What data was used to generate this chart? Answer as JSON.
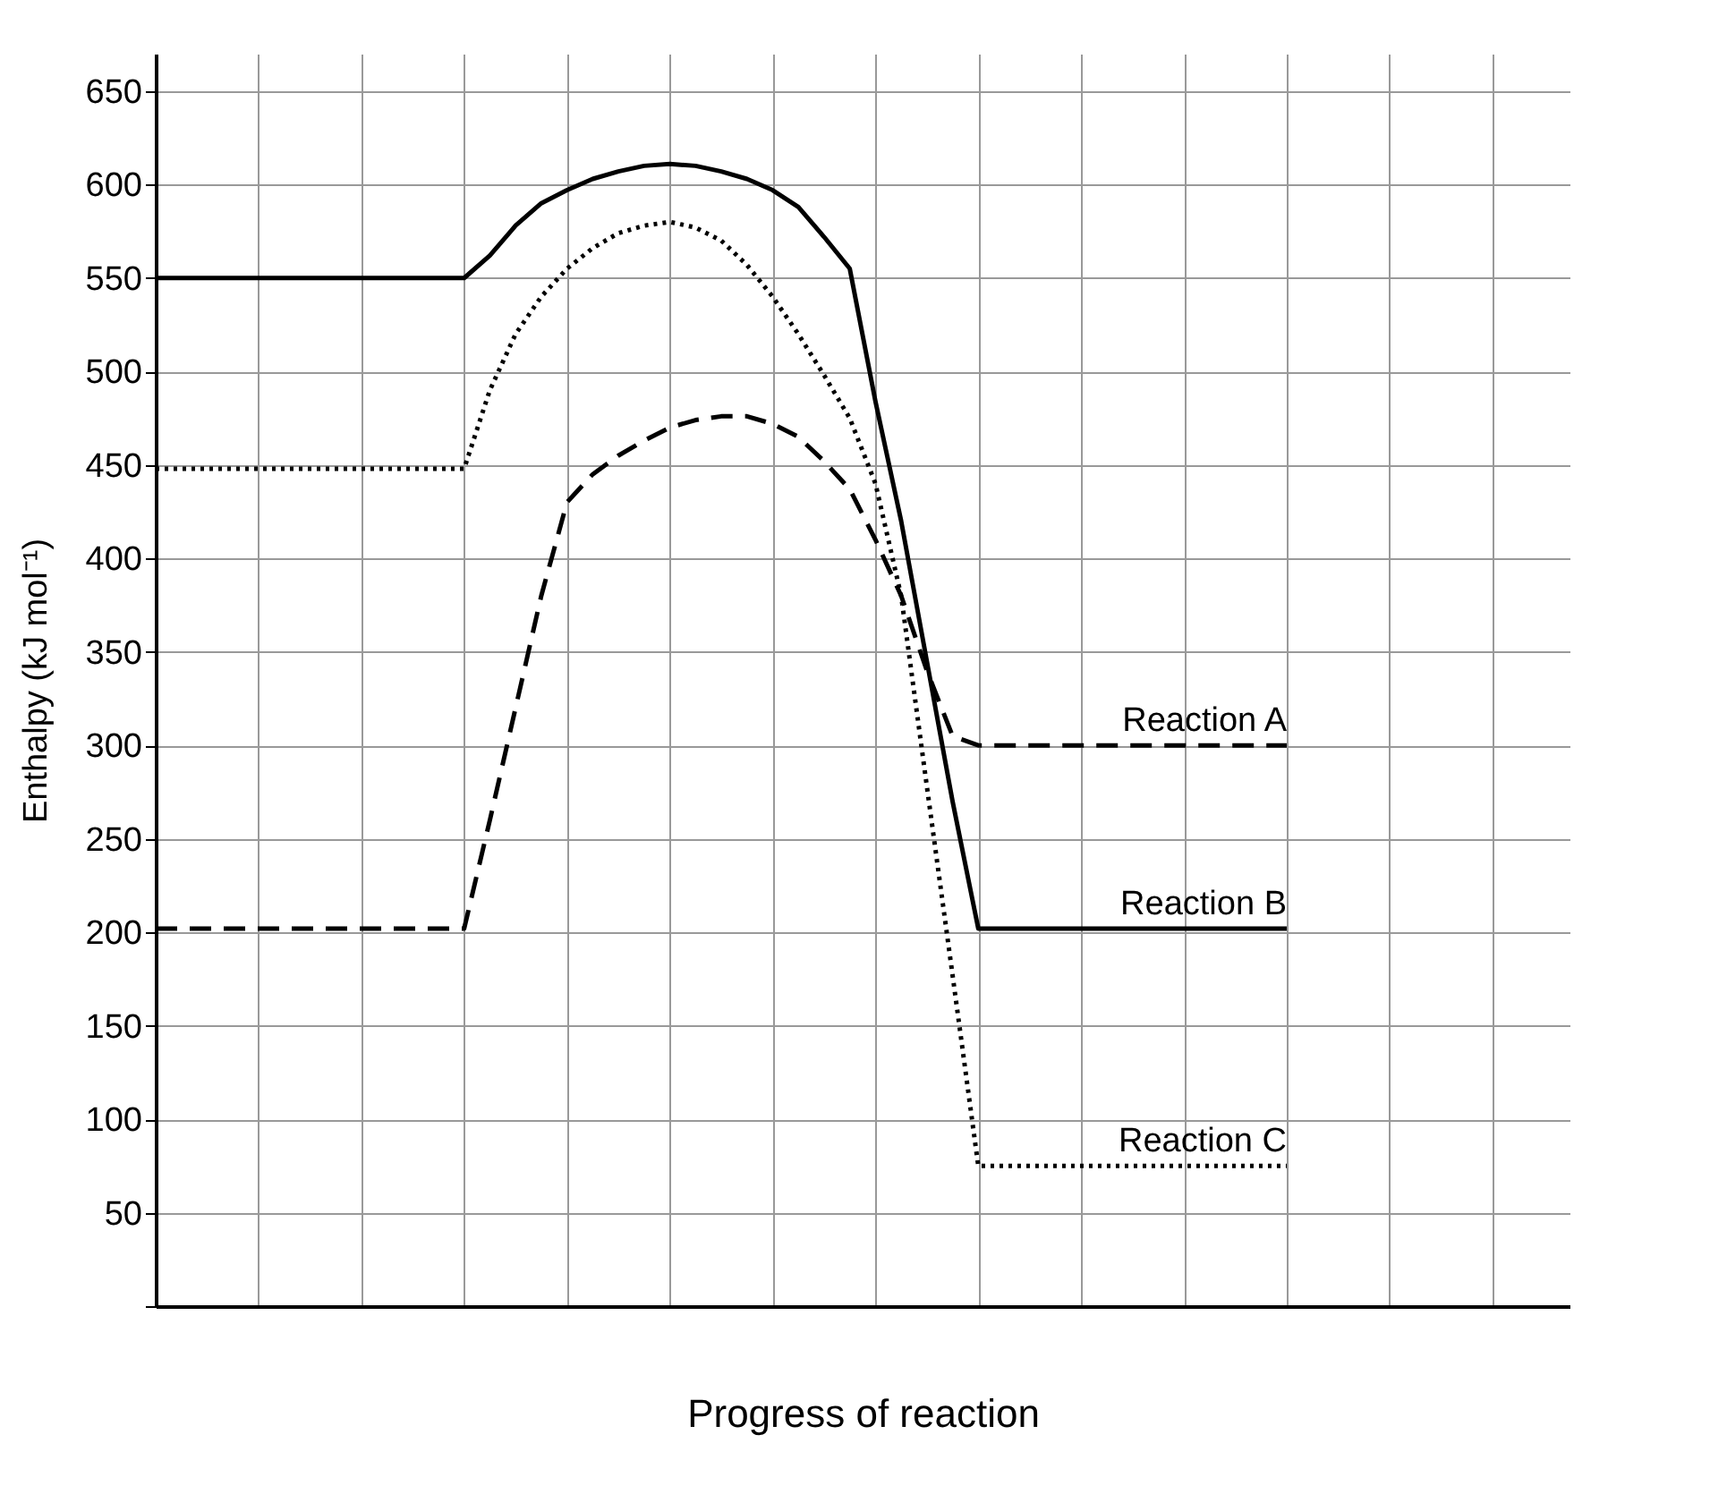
{
  "chart_data": {
    "type": "line",
    "xlabel": "Progress of reaction",
    "ylabel": "Enthalpy (kJ mol⁻¹)",
    "categories": [
      null,
      null,
      null,
      null,
      null,
      null,
      null,
      null,
      null,
      null,
      null,
      null,
      null,
      null,
      null,
      null,
      null,
      null,
      null,
      null,
      null,
      null,
      null,
      null,
      null,
      null,
      null,
      null,
      null,
      null,
      null,
      null,
      null,
      null,
      null,
      null,
      null,
      null,
      null,
      null,
      null,
      null,
      null,
      null,
      null,
      null,
      null,
      null,
      null,
      null,
      null,
      null,
      null,
      null,
      null,
      null
    ],
    "ylim": [
      0,
      670
    ],
    "yticks": [
      {
        "value": 0,
        "label": null
      },
      50,
      100,
      150,
      200,
      250,
      300,
      350,
      400,
      450,
      500,
      550,
      600,
      650
    ],
    "grid": true,
    "tick_labels": "y",
    "marker": "none",
    "series": [
      {
        "name": "Reaction A",
        "color": "#000000",
        "line_style": "dashed",
        "values": [
          202,
          202,
          202,
          202,
          202,
          202,
          202,
          202,
          202,
          202,
          202,
          202,
          202,
          260,
          320,
          380,
          430,
          445,
          455,
          463,
          470,
          474,
          476,
          476,
          472,
          465,
          452,
          437,
          410,
          380,
          340,
          305,
          300,
          300,
          300,
          300,
          300,
          300,
          300,
          300,
          300,
          300,
          300,
          300,
          300,
          null,
          null,
          null,
          null,
          null,
          null,
          null,
          null,
          null,
          null,
          null
        ]
      },
      {
        "name": "Reaction B",
        "color": "#000000",
        "line_style": "solid",
        "values": [
          550,
          550,
          550,
          550,
          550,
          550,
          550,
          550,
          550,
          550,
          550,
          550,
          550,
          562,
          578,
          590,
          597,
          603,
          607,
          610,
          611,
          610,
          607,
          603,
          597,
          588,
          572,
          555,
          484,
          420,
          345,
          270,
          202,
          202,
          202,
          202,
          202,
          202,
          202,
          202,
          202,
          202,
          202,
          202,
          202,
          null,
          null,
          null,
          null,
          null,
          null,
          null,
          null,
          null,
          null,
          null
        ]
      },
      {
        "name": "Reaction C",
        "color": "#000000",
        "line_style": "dotted",
        "values": [
          448,
          448,
          448,
          448,
          448,
          448,
          448,
          448,
          448,
          448,
          448,
          448,
          448,
          490,
          520,
          540,
          555,
          566,
          574,
          578,
          580,
          577,
          570,
          557,
          540,
          520,
          498,
          475,
          440,
          380,
          278,
          177,
          75,
          75,
          75,
          75,
          75,
          75,
          75,
          75,
          75,
          75,
          75,
          75,
          75,
          null,
          null,
          null,
          null,
          null,
          null,
          null,
          null,
          null,
          null,
          null
        ]
      }
    ]
  }
}
